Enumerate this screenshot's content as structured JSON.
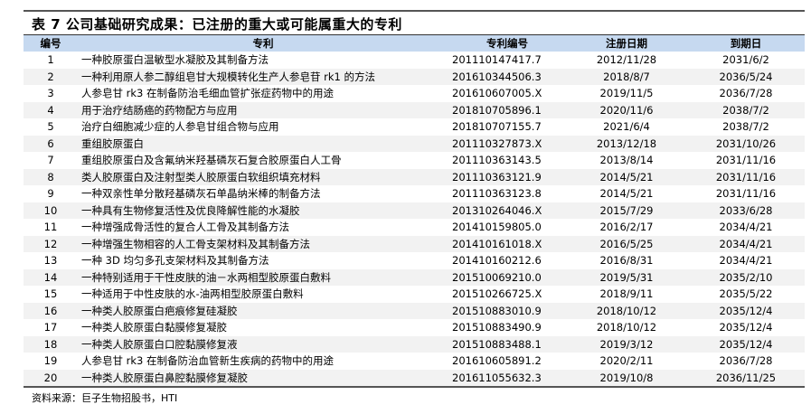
{
  "title": "表 7 公司基础研究成果：已注册的重大或可能属重大的专利",
  "headers": [
    "编号",
    "专利",
    "专利编号",
    "注册日期",
    "到期日"
  ],
  "rows": [
    [
      "1",
      "一种胶原蛋白温敏型水凝胶及其制备方法",
      "201110147417.7",
      "2012/11/28",
      "2031/6/2"
    ],
    [
      "2",
      "一种利用原人参二醇组皂甘大规模转化生产人参皂苷 rk1 的方法",
      "201610344506.3",
      "2018/8/7",
      "2036/5/24"
    ],
    [
      "3",
      "人参皂甘 rk3 在制备防治毛细血管扩张症药物中的用途",
      "201610607005.X",
      "2019/11/5",
      "2036/7/28"
    ],
    [
      "4",
      "用于治疗结肠癌的药物配方与应用",
      "201810705896.1",
      "2020/11/6",
      "2038/7/2"
    ],
    [
      "5",
      "治疗白细胞减少症的人参皂甘组合物与应用",
      "201810707155.7",
      "2021/6/4",
      "2038/7/2"
    ],
    [
      "6",
      "重组胶原蛋白",
      "201110327873.X",
      "2013/12/18",
      "2031/10/26"
    ],
    [
      "7",
      "重组胶原蛋白及含氟纳米羟基磷灰石复合胶原蛋白人工骨",
      "201110363143.5",
      "2013/8/14",
      "2031/11/16"
    ],
    [
      "8",
      "类人胶原蛋白及注射型类人胶原蛋白软组织填充材料",
      "201110363121.9",
      "2014/5/21",
      "2031/11/16"
    ],
    [
      "9",
      "一种双亲性单分散羟基磷灰石单晶纳米棒的制备方法",
      "201110363123.8",
      "2014/5/21",
      "2031/11/16"
    ],
    [
      "10",
      "一种具有生物修复活性及优良降解性能的水凝胶",
      "201310264046.X",
      "2015/7/29",
      "2033/6/28"
    ],
    [
      "11",
      "一种增强成骨活性的复合人工骨及其制备方法",
      "201410159805.0",
      "2016/2/17",
      "2034/4/21"
    ],
    [
      "12",
      "一种增强生物相容的人工骨支架材料及其制备方法",
      "201410161018.X",
      "2016/5/25",
      "2034/4/21"
    ],
    [
      "13",
      "一种 3D 均匀多孔支架材料及其制备方法",
      "201410160212.6",
      "2016/8/31",
      "2034/4/21"
    ],
    [
      "14",
      "一种特别适用于干性皮肤的油－水两相型胶原蛋白敷料",
      "201510069210.0",
      "2019/5/31",
      "2035/2/10"
    ],
    [
      "15",
      "一种适用于中性皮肤的水-油两相型胶原蛋白敷料",
      "201510266725.X",
      "2018/9/11",
      "2035/5/22"
    ],
    [
      "16",
      "一种类人胶原蛋白疤痕修复硅凝胶",
      "201510883010.9",
      "2018/10/12",
      "2035/12/4"
    ],
    [
      "17",
      "一种类人胶原蛋白黏膜修复凝胶",
      "201510883490.9",
      "2018/10/12",
      "2035/12/4"
    ],
    [
      "18",
      "一种类人胶原蛋白口腔黏膜修复液",
      "201510883488.1",
      "2019/3/12",
      "2035/12/4"
    ],
    [
      "19",
      "人参皂甘 rk3 在制备防治血管新生疾病的药物中的用途",
      "201610605891.2",
      "2020/2/11",
      "2036/7/28"
    ],
    [
      "20",
      "一种类人胶原蛋白鼻腔黏膜修复凝胶",
      "201611055632.3",
      "2019/10/8",
      "2036/11/25"
    ]
  ],
  "source": "资料来源：巨子生物招股书，HTI",
  "colors": {
    "header_bg": "#c6d9f0",
    "alt_row_bg": "#f2f2f2"
  }
}
